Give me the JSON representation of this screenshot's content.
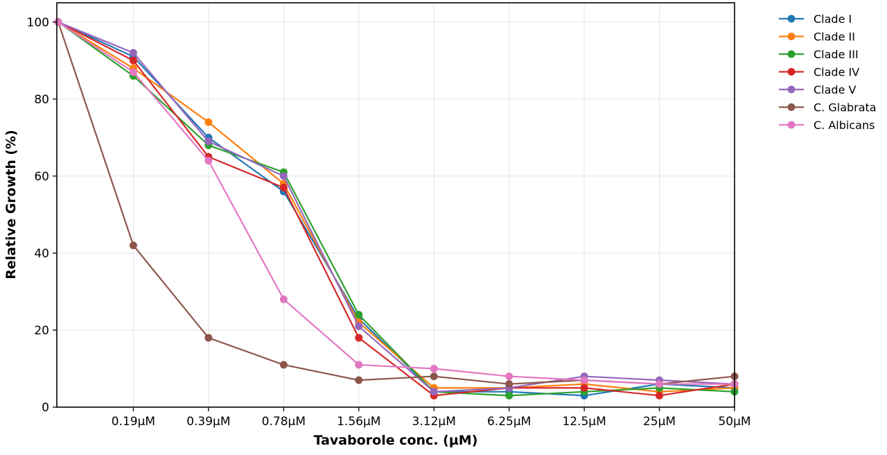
{
  "chart_data": {
    "type": "line",
    "title": "",
    "xlabel": "Tavaborole conc. (µM)",
    "ylabel": "Relative Growth (%)",
    "categories": [
      "",
      "0.19µM",
      "0.39µM",
      "0.78µM",
      "1.56µM",
      "3.12µM",
      "6.25µM",
      "12.5µM",
      "25µM",
      "50µM"
    ],
    "ylim": [
      0,
      105
    ],
    "yticks": [
      0,
      20,
      40,
      60,
      80,
      100
    ],
    "grid": true,
    "legend_position": "outside-right",
    "series": [
      {
        "name": "Clade I",
        "color": "#1f77b4",
        "values": [
          100,
          91,
          70,
          56,
          23,
          4,
          4,
          3,
          6,
          5
        ]
      },
      {
        "name": "Clade II",
        "color": "#ff7f0e",
        "values": [
          100,
          88,
          74,
          58,
          22,
          5,
          5,
          6,
          4,
          5
        ]
      },
      {
        "name": "Clade III",
        "color": "#2ca02c",
        "values": [
          100,
          86,
          68,
          61,
          24,
          4,
          3,
          4,
          5,
          4
        ]
      },
      {
        "name": "Clade IV",
        "color": "#d62728",
        "values": [
          100,
          90,
          65,
          57,
          18,
          3,
          5,
          5,
          3,
          6
        ]
      },
      {
        "name": "Clade V",
        "color": "#9467bd",
        "values": [
          100,
          92,
          69,
          60,
          21,
          4,
          5,
          8,
          7,
          6
        ]
      },
      {
        "name": "C. Glabrata",
        "color": "#8c564b",
        "values": [
          100,
          42,
          18,
          11,
          7,
          8,
          6,
          7,
          6,
          8
        ]
      },
      {
        "name": "C. Albicans",
        "color": "#e377c2",
        "values": [
          100,
          87,
          64,
          28,
          11,
          10,
          8,
          7,
          6,
          6
        ]
      }
    ]
  }
}
